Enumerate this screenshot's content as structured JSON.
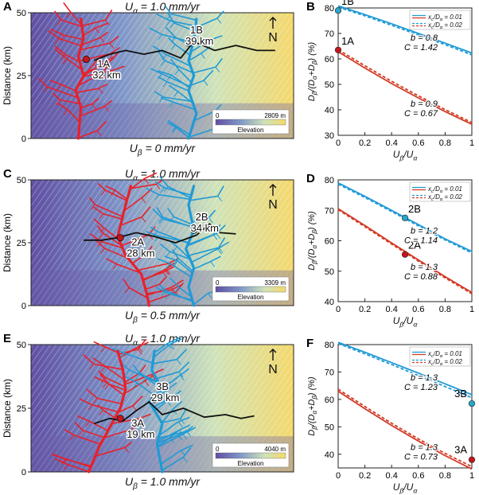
{
  "colors": {
    "red": "#e8202a",
    "blue": "#1f9ad6",
    "divide": "#111111",
    "dot_red": "#c4161c",
    "dot_blue": "#2aa6c9"
  },
  "map_rows": [
    {
      "panel_letter": "A",
      "top_label": "U_α = 1.0 mm/yr",
      "bottom_label": "U_β = 0 mm/yr",
      "y_axis_label": "Distance (km)",
      "y_ticks": [
        "50",
        "25",
        "0"
      ],
      "north": "N",
      "legend_min": "0",
      "legend_max": "2809 m",
      "legend_title": "Elevation",
      "callouts": [
        {
          "id": "1A",
          "dist": "32 km",
          "color": "red"
        },
        {
          "id": "1B",
          "dist": "39 km",
          "color": "blue"
        }
      ]
    },
    {
      "panel_letter": "C",
      "top_label": "U_α = 1.0 mm/yr",
      "bottom_label": "U_β = 0.5 mm/yr",
      "y_axis_label": "Distance (km)",
      "y_ticks": [
        "50",
        "25",
        "0"
      ],
      "north": "N",
      "legend_min": "0",
      "legend_max": "3309 m",
      "legend_title": "Elevation",
      "callouts": [
        {
          "id": "2A",
          "dist": "28 km",
          "color": "red"
        },
        {
          "id": "2B",
          "dist": "34 km",
          "color": "blue"
        }
      ]
    },
    {
      "panel_letter": "E",
      "top_label": "U_α = 1.0 mm/yr",
      "bottom_label": "U_β = 1.0 mm/yr",
      "y_axis_label": "Distance (km)",
      "y_ticks": [
        "50",
        "25",
        "0"
      ],
      "north": "N",
      "legend_min": "0",
      "legend_max": "4040 m",
      "legend_title": "Elevation",
      "callouts": [
        {
          "id": "3A",
          "dist": "19 km",
          "color": "red"
        },
        {
          "id": "3B",
          "dist": "29 km",
          "color": "blue"
        }
      ]
    }
  ],
  "chart_data": [
    {
      "panel": "B",
      "type": "line",
      "xlabel": "U_β/U_α",
      "ylabel": "D_β/(D_α+D_β) (%)",
      "xlim": [
        0,
        1
      ],
      "ylim": [
        30,
        80
      ],
      "xticks": [
        "0",
        "0.2",
        "0.4",
        "0.6",
        "0.8",
        "1"
      ],
      "yticks": [
        "30",
        "40",
        "50",
        "60",
        "70",
        "80"
      ],
      "legend": [
        "x_c/D_α = 0.01",
        "x_c/D_α = 0.02"
      ],
      "series": [
        {
          "color": "blue",
          "style": "solid",
          "x": [
            0,
            0.2,
            0.4,
            0.6,
            0.8,
            1
          ],
          "y": [
            80.8,
            77.4,
            73.8,
            70.0,
            66.2,
            62.3
          ]
        },
        {
          "color": "blue",
          "style": "dashed",
          "x": [
            0,
            0.2,
            0.4,
            0.6,
            0.8,
            1
          ],
          "y": [
            80.3,
            76.9,
            73.2,
            69.4,
            65.6,
            61.6
          ]
        },
        {
          "color": "red",
          "style": "solid",
          "x": [
            0,
            0.2,
            0.4,
            0.6,
            0.8,
            1
          ],
          "y": [
            62.8,
            56.4,
            50.3,
            44.7,
            39.3,
            34.3
          ]
        },
        {
          "color": "red",
          "style": "dashed",
          "x": [
            0,
            0.2,
            0.4,
            0.6,
            0.8,
            1
          ],
          "y": [
            63.6,
            57.3,
            51.2,
            45.5,
            40.1,
            35.0
          ]
        }
      ],
      "points": [
        {
          "label": "1B",
          "color": "blue",
          "x": 0,
          "y": 79
        },
        {
          "label": "1A",
          "color": "red",
          "x": 0,
          "y": 63.5
        }
      ],
      "annotations": [
        {
          "b": "b = 0.8",
          "C": "C = 1.42",
          "near": "blue"
        },
        {
          "b": "b = 0.9",
          "C": "C = 0.67",
          "near": "red"
        }
      ]
    },
    {
      "panel": "D",
      "type": "line",
      "xlabel": "U_β/U_α",
      "ylabel": "D_β/(D_α+D_β) (%)",
      "xlim": [
        0,
        1
      ],
      "ylim": [
        40,
        80
      ],
      "xticks": [
        "0",
        "0.2",
        "0.4",
        "0.6",
        "0.8",
        "1"
      ],
      "yticks": [
        "40",
        "50",
        "60",
        "70",
        "80"
      ],
      "legend": [
        "x_c/D_α = 0.01",
        "x_c/D_α = 0.02"
      ],
      "series": [
        {
          "color": "blue",
          "style": "solid",
          "x": [
            0,
            0.2,
            0.4,
            0.6,
            0.8,
            1
          ],
          "y": [
            79.0,
            74.6,
            70.0,
            65.3,
            60.6,
            56.5
          ]
        },
        {
          "color": "blue",
          "style": "dashed",
          "x": [
            0,
            0.2,
            0.4,
            0.6,
            0.8,
            1
          ],
          "y": [
            78.6,
            74.2,
            69.6,
            64.9,
            60.3,
            56.0
          ]
        },
        {
          "color": "red",
          "style": "solid",
          "x": [
            0,
            0.2,
            0.4,
            0.6,
            0.8,
            1
          ],
          "y": [
            70.5,
            65.0,
            59.3,
            53.7,
            48.2,
            43.0
          ]
        },
        {
          "color": "red",
          "style": "dashed",
          "x": [
            0,
            0.2,
            0.4,
            0.6,
            0.8,
            1
          ],
          "y": [
            70.2,
            64.6,
            58.9,
            53.3,
            47.8,
            42.6
          ]
        }
      ],
      "points": [
        {
          "label": "2B",
          "color": "blue",
          "x": 0.5,
          "y": 67.5
        },
        {
          "label": "2A",
          "color": "red",
          "x": 0.5,
          "y": 55.5
        }
      ],
      "annotations": [
        {
          "b": "b = 1.2",
          "C": "C = 1.14",
          "near": "blue"
        },
        {
          "b": "b = 1.3",
          "C": "C = 0.88",
          "near": "red"
        }
      ]
    },
    {
      "panel": "F",
      "type": "line",
      "xlabel": "U_β/U_α",
      "ylabel": "D_β/(D_α+D_β) (%)",
      "xlim": [
        0,
        1
      ],
      "ylim": [
        35,
        80
      ],
      "xticks": [
        "0",
        "0.2",
        "0.4",
        "0.6",
        "0.8",
        "1"
      ],
      "yticks": [
        "40",
        "50",
        "60",
        "70",
        "80"
      ],
      "legend": [
        "x_c/D_α = 0.01",
        "x_c/D_α = 0.02"
      ],
      "series": [
        {
          "color": "blue",
          "style": "solid",
          "x": [
            0,
            0.2,
            0.4,
            0.6,
            0.8,
            1
          ],
          "y": [
            80.8,
            77.2,
            73.4,
            69.6,
            65.7,
            61.7
          ]
        },
        {
          "color": "blue",
          "style": "dashed",
          "x": [
            0,
            0.2,
            0.4,
            0.6,
            0.8,
            1
          ],
          "y": [
            80.4,
            76.6,
            72.7,
            68.7,
            64.7,
            60.6
          ]
        },
        {
          "color": "red",
          "style": "solid",
          "x": [
            0,
            0.2,
            0.4,
            0.6,
            0.8,
            1
          ],
          "y": [
            63.0,
            56.6,
            50.5,
            44.8,
            39.5,
            34.6
          ]
        },
        {
          "color": "red",
          "style": "dashed",
          "x": [
            0,
            0.2,
            0.4,
            0.6,
            0.8,
            1
          ],
          "y": [
            63.7,
            57.4,
            51.3,
            45.6,
            40.3,
            35.5
          ]
        }
      ],
      "points": [
        {
          "label": "3B",
          "color": "blue",
          "x": 1,
          "y": 58.5
        },
        {
          "label": "3A",
          "color": "red",
          "x": 1,
          "y": 38
        }
      ],
      "annotations": [
        {
          "b": "b = 1.3",
          "C": "C = 1.23",
          "near": "blue"
        },
        {
          "b": "b = 1.3",
          "C": "C = 0.73",
          "near": "red"
        }
      ]
    }
  ]
}
